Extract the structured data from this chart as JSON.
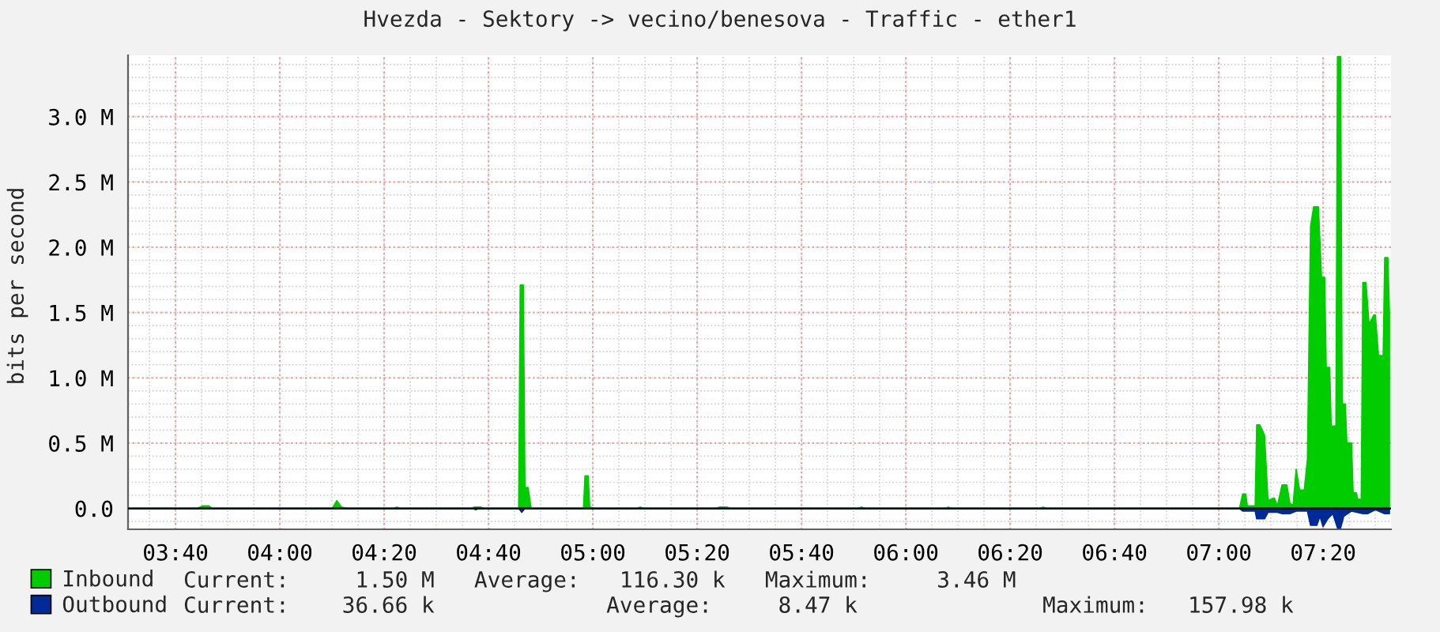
{
  "chart_data": {
    "type": "area",
    "title": "Hvezda - Sektory -> vecino/benesova - Traffic - ether1",
    "ylabel": "bits per second",
    "xlim": [
      3.515,
      7.55
    ],
    "xticks": [
      {
        "value": 3.6667,
        "label": "03:40"
      },
      {
        "value": 4.0,
        "label": "04:00"
      },
      {
        "value": 4.3333,
        "label": "04:20"
      },
      {
        "value": 4.6667,
        "label": "04:40"
      },
      {
        "value": 5.0,
        "label": "05:00"
      },
      {
        "value": 5.3333,
        "label": "05:20"
      },
      {
        "value": 5.6667,
        "label": "05:40"
      },
      {
        "value": 6.0,
        "label": "06:00"
      },
      {
        "value": 6.3333,
        "label": "06:20"
      },
      {
        "value": 6.6667,
        "label": "06:40"
      },
      {
        "value": 7.0,
        "label": "07:00"
      },
      {
        "value": 7.3333,
        "label": "07:20"
      }
    ],
    "ylim": [
      -0.16,
      3.47
    ],
    "yticks": [
      {
        "value": 0,
        "label": "0.0"
      },
      {
        "value": 0.5,
        "label": "0.5 M"
      },
      {
        "value": 1.0,
        "label": "1.0 M"
      },
      {
        "value": 1.5,
        "label": "1.5 M"
      },
      {
        "value": 2.0,
        "label": "2.0 M"
      },
      {
        "value": 2.5,
        "label": "2.5 M"
      },
      {
        "value": 3.0,
        "label": "3.0 M"
      }
    ],
    "grid": true,
    "legend": "bottom",
    "series": [
      {
        "name": "Inbound",
        "color": "#00cc00",
        "x": [
          3.515,
          3.737,
          3.753,
          3.773,
          3.783,
          4.167,
          4.182,
          4.197,
          4.212,
          4.364,
          4.374,
          4.384,
          4.611,
          4.621,
          4.641,
          4.652,
          4.763,
          4.768,
          4.778,
          4.783,
          4.793,
          4.803,
          4.97,
          4.975,
          4.985,
          4.99,
          5.005,
          5.141,
          5.152,
          5.162,
          5.394,
          5.404,
          5.429,
          5.439,
          5.848,
          5.859,
          5.869,
          6.126,
          6.136,
          6.146,
          6.429,
          6.439,
          6.449,
          7.066,
          7.076,
          7.086,
          7.091,
          7.116,
          7.121,
          7.131,
          7.146,
          7.157,
          7.177,
          7.187,
          7.202,
          7.217,
          7.227,
          7.237,
          7.247,
          7.258,
          7.273,
          7.283,
          7.293,
          7.303,
          7.318,
          7.328,
          7.338,
          7.343,
          7.354,
          7.359,
          7.374,
          7.379,
          7.389,
          7.394,
          7.404,
          7.409,
          7.424,
          7.429,
          7.439,
          7.444,
          7.455,
          7.46,
          7.47,
          7.48,
          7.495,
          7.5,
          7.51,
          7.525,
          7.53,
          7.54,
          7.545
        ],
        "values": [
          0,
          0,
          0.02,
          0.02,
          0,
          0,
          0.06,
          0.01,
          0,
          0,
          0.01,
          0,
          0,
          0.01,
          0.01,
          0,
          0,
          1.71,
          1.71,
          0.16,
          0.16,
          0,
          0,
          0.25,
          0.25,
          0.01,
          0,
          0,
          0.01,
          0,
          0,
          0.01,
          0.01,
          0,
          0,
          0.01,
          0,
          0,
          0.01,
          0,
          0,
          0.01,
          0,
          0,
          0.11,
          0.11,
          0.02,
          0.02,
          0.64,
          0.64,
          0.56,
          0.06,
          0.08,
          0.02,
          0.18,
          0.18,
          0.04,
          0.02,
          0.3,
          0.14,
          0.14,
          0.38,
          2.16,
          2.31,
          2.31,
          1.77,
          1.77,
          1.08,
          1.08,
          0.63,
          0.63,
          3.46,
          3.46,
          0.8,
          0.8,
          0.5,
          0.5,
          0.12,
          0.12,
          0.07,
          0.07,
          1.73,
          1.73,
          1.41,
          1.48,
          1.48,
          1.17,
          1.17,
          1.92,
          1.92,
          1.5
        ]
      },
      {
        "name": "Outbound",
        "color": "#002a97",
        "x": [
          3.515,
          4.616,
          4.626,
          4.636,
          4.763,
          4.773,
          4.783,
          7.066,
          7.076,
          7.096,
          7.116,
          7.121,
          7.146,
          7.157,
          7.187,
          7.202,
          7.227,
          7.247,
          7.283,
          7.293,
          7.313,
          7.323,
          7.333,
          7.348,
          7.364,
          7.379,
          7.389,
          7.399,
          7.424,
          7.46,
          7.475,
          7.5,
          7.53,
          7.545
        ],
        "values": [
          0,
          0,
          -0.01,
          0,
          0,
          -0.03,
          0,
          0,
          -0.02,
          -0.02,
          -0.02,
          -0.08,
          -0.08,
          -0.03,
          -0.03,
          -0.04,
          -0.04,
          -0.02,
          -0.02,
          -0.13,
          -0.13,
          -0.06,
          -0.14,
          -0.08,
          -0.04,
          -0.15,
          -0.15,
          -0.06,
          -0.02,
          -0.04,
          -0.04,
          -0.01,
          -0.04,
          -0.04
        ]
      }
    ],
    "annotations": [
      "Current:     1.50 M   Average:   116.30 k   Maximum:     3.46 M",
      "Current:    36.66 k             Average:     8.47 k              Maximum:   157.98 k"
    ]
  }
}
